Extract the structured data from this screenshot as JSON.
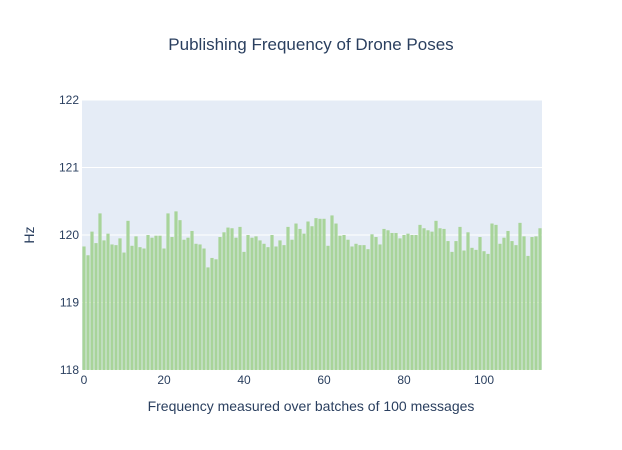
{
  "chart_data": {
    "type": "bar",
    "title": "Publishing Frequency of Drone Poses",
    "xlabel": "Frequency measured over batches of 100 messages",
    "ylabel": "Hz",
    "xlim": [
      -0.5,
      114.5
    ],
    "ylim": [
      118,
      122
    ],
    "x_ticks": [
      0,
      20,
      40,
      60,
      80,
      100
    ],
    "y_ticks": [
      118,
      119,
      120,
      121,
      122
    ],
    "grid": true,
    "legend": "none",
    "colors": {
      "bar": "#a8d49a",
      "plot_background": "#e5ecf6",
      "grid": "#ffffff",
      "text": "#2a3f5f"
    },
    "x": [
      0,
      1,
      2,
      3,
      4,
      5,
      6,
      7,
      8,
      9,
      10,
      11,
      12,
      13,
      14,
      15,
      16,
      17,
      18,
      19,
      20,
      21,
      22,
      23,
      24,
      25,
      26,
      27,
      28,
      29,
      30,
      31,
      32,
      33,
      34,
      35,
      36,
      37,
      38,
      39,
      40,
      41,
      42,
      43,
      44,
      45,
      46,
      47,
      48,
      49,
      50,
      51,
      52,
      53,
      54,
      55,
      56,
      57,
      58,
      59,
      60,
      61,
      62,
      63,
      64,
      65,
      66,
      67,
      68,
      69,
      70,
      71,
      72,
      73,
      74,
      75,
      76,
      77,
      78,
      79,
      80,
      81,
      82,
      83,
      84,
      85,
      86,
      87,
      88,
      89,
      90,
      91,
      92,
      93,
      94,
      95,
      96,
      97,
      98,
      99,
      100,
      101,
      102,
      103,
      104,
      105,
      106,
      107,
      108,
      109,
      110,
      111,
      112,
      113,
      114
    ],
    "values": [
      119.83,
      119.7,
      120.05,
      119.88,
      120.32,
      119.92,
      120.02,
      119.86,
      119.85,
      119.95,
      119.74,
      120.21,
      119.84,
      119.98,
      119.82,
      119.8,
      120.0,
      119.96,
      119.99,
      119.99,
      119.8,
      120.32,
      119.97,
      120.35,
      120.22,
      119.93,
      119.96,
      120.06,
      119.87,
      119.86,
      119.8,
      119.52,
      119.66,
      119.64,
      119.97,
      120.04,
      120.11,
      120.1,
      119.96,
      120.12,
      119.75,
      120.0,
      119.96,
      119.98,
      119.92,
      119.87,
      119.82,
      120.0,
      119.83,
      119.92,
      119.85,
      120.12,
      119.93,
      120.17,
      120.09,
      120.02,
      120.2,
      120.13,
      120.25,
      120.24,
      120.24,
      119.84,
      120.29,
      120.17,
      119.99,
      120.0,
      119.93,
      119.83,
      119.87,
      119.85,
      119.85,
      119.79,
      120.01,
      119.97,
      119.86,
      120.09,
      120.07,
      120.03,
      120.03,
      119.95,
      120.0,
      120.02,
      120.0,
      120.0,
      120.15,
      120.1,
      120.07,
      120.05,
      120.21,
      120.1,
      120.09,
      119.91,
      119.75,
      119.91,
      120.12,
      119.77,
      120.04,
      119.81,
      119.78,
      119.97,
      119.76,
      119.72,
      120.17,
      120.15,
      119.87,
      119.96,
      120.06,
      119.91,
      119.85,
      120.18,
      119.98,
      119.69,
      119.97,
      119.98,
      120.1
    ]
  }
}
